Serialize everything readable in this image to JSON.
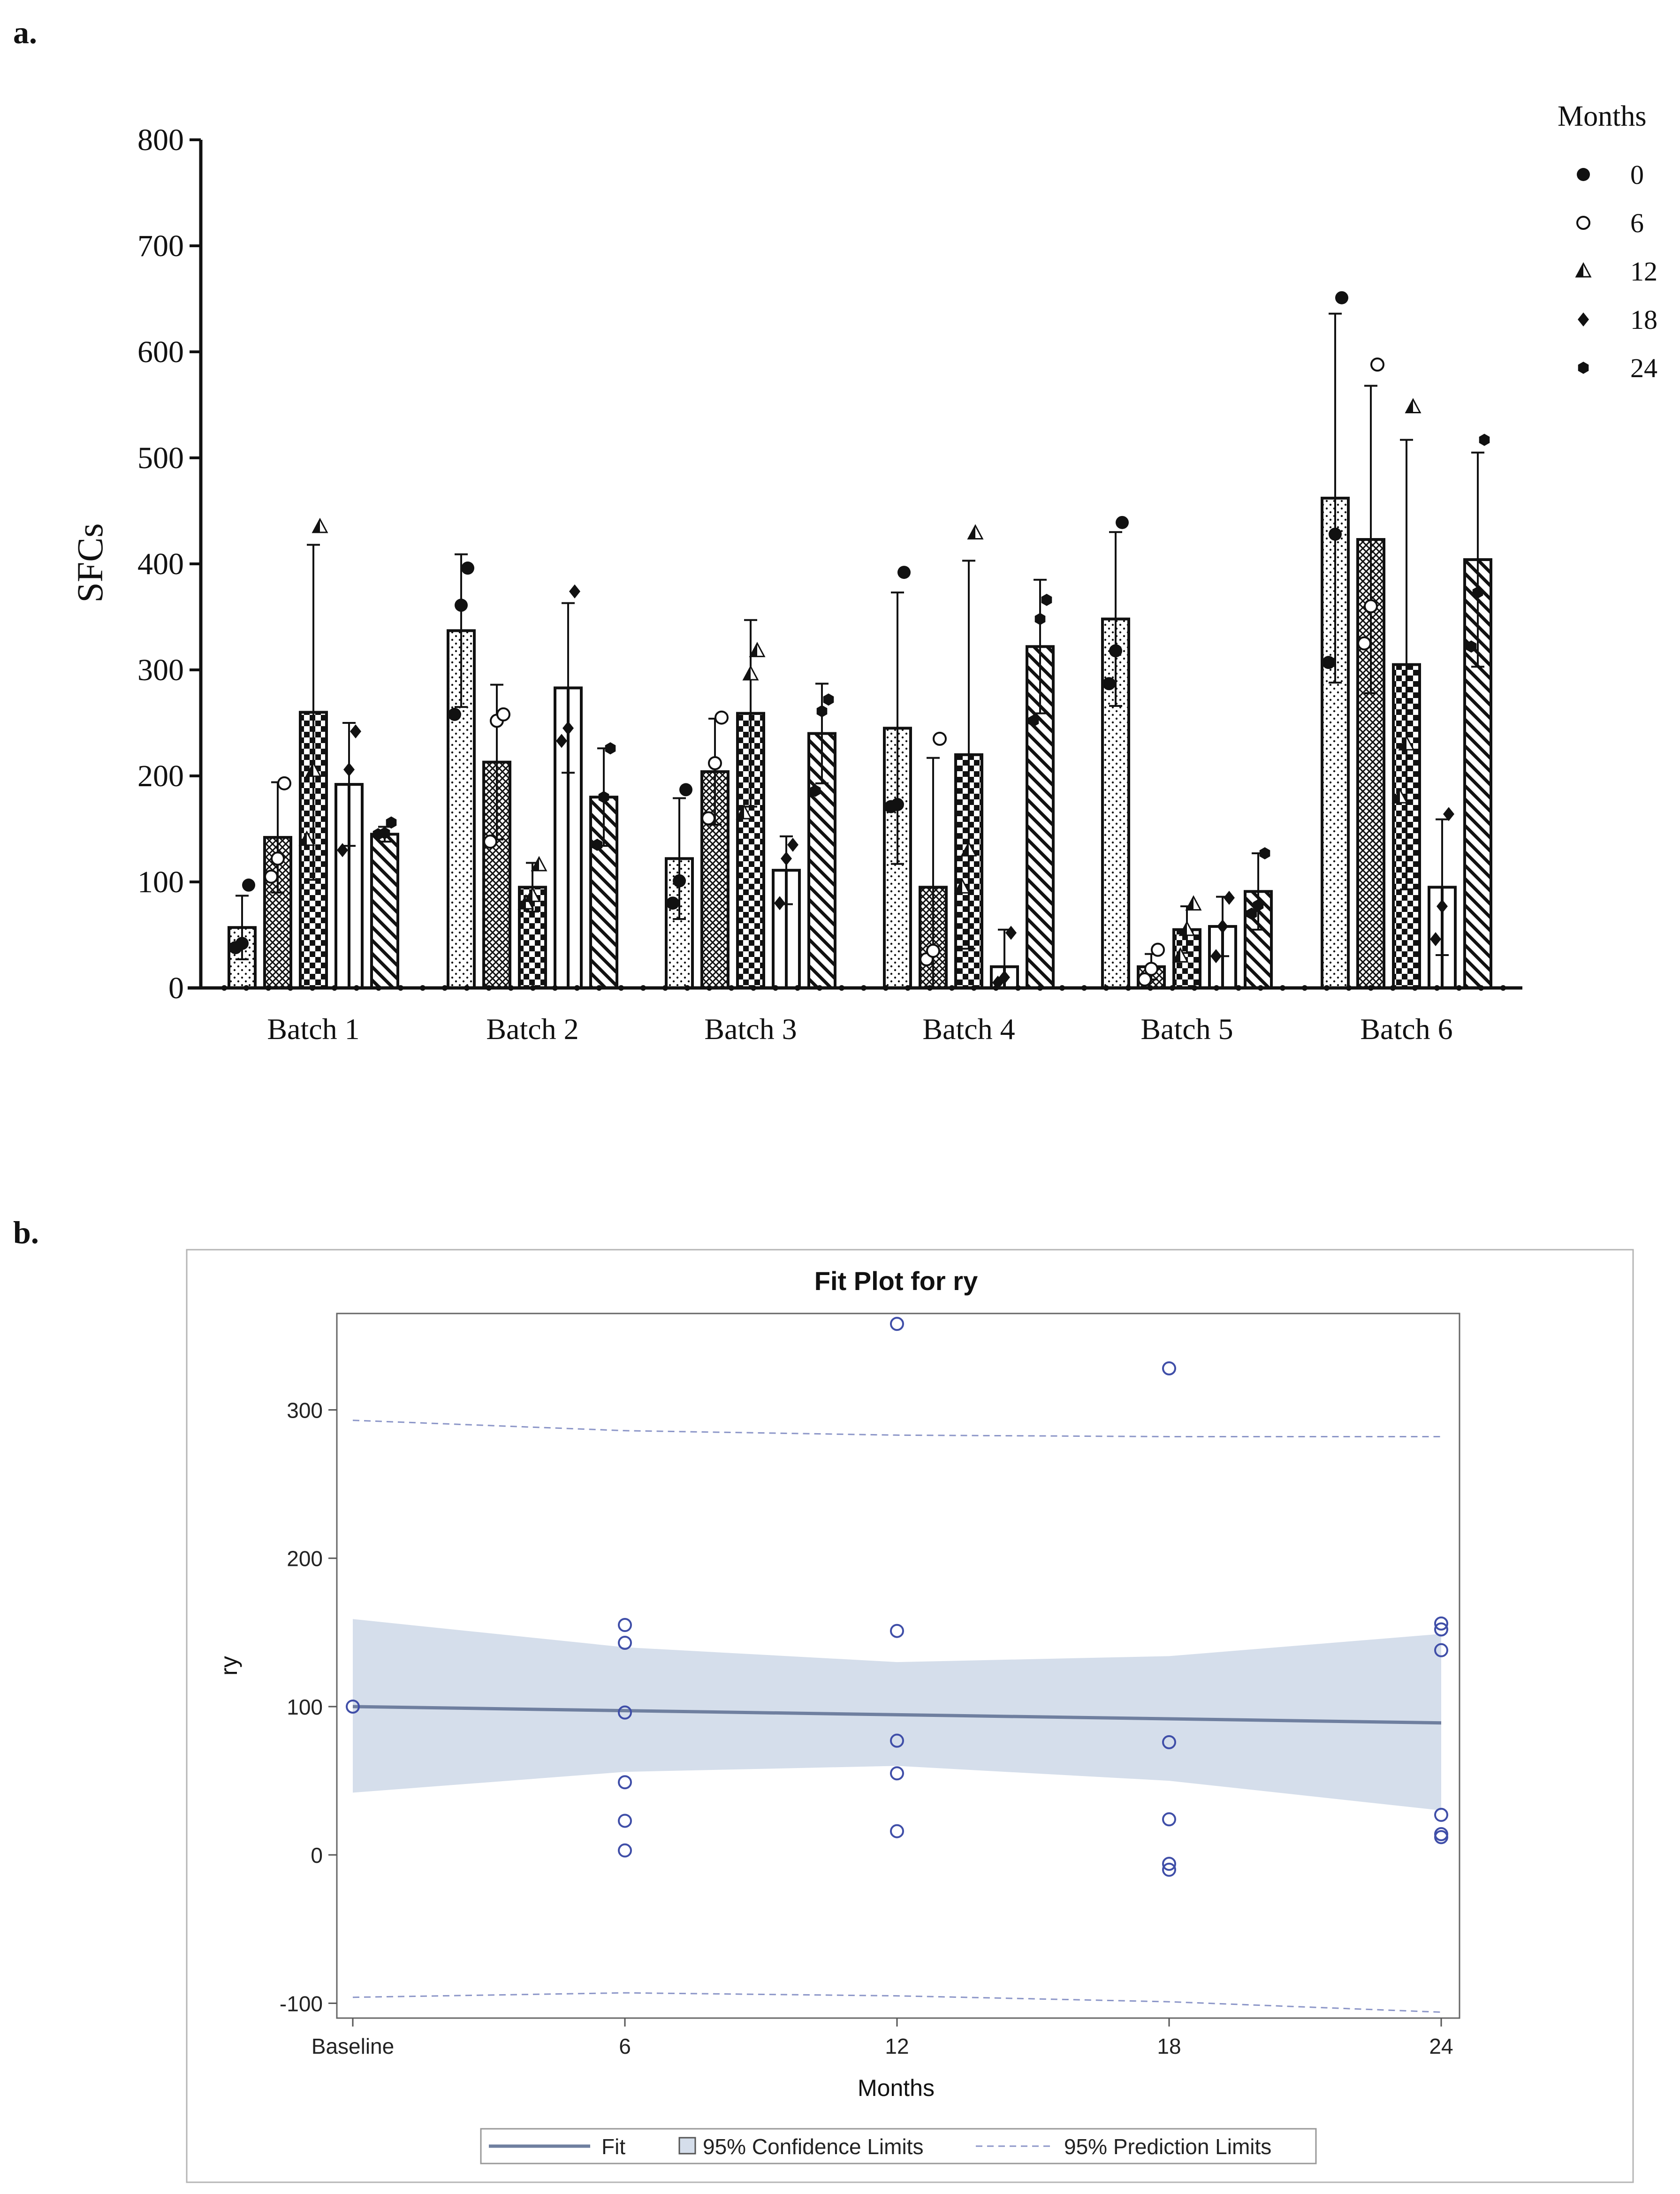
{
  "panel_labels": [
    "a.",
    "b."
  ],
  "chart_data": [
    {
      "type": "bar",
      "title": "",
      "xlabel": "",
      "ylabel": "SFCs",
      "ylim": [
        0,
        800
      ],
      "yticks": [
        "0",
        "100",
        "200",
        "300",
        "400",
        "500",
        "600",
        "700",
        "800"
      ],
      "categories": [
        "Batch 1",
        "Batch 2",
        "Batch 3",
        "Batch 4",
        "Batch 5",
        "Batch 6"
      ],
      "legend_title": "Months",
      "legend_position": "top-right",
      "series": [
        {
          "name": "0",
          "marker": "circle-filled",
          "pattern": "dots",
          "values": [
            57,
            337,
            122,
            245,
            348,
            462
          ],
          "errors": [
            30,
            72,
            57,
            128,
            82,
            174
          ],
          "points": [
            [
              38,
              42,
              97
            ],
            [
              258,
              361,
              396
            ],
            [
              80,
              101,
              187
            ],
            [
              171,
              173,
              392
            ],
            [
              287,
              318,
              439
            ],
            [
              307,
              428,
              651
            ]
          ]
        },
        {
          "name": "6",
          "marker": "circle-open",
          "pattern": "crosshatch",
          "values": [
            142,
            213,
            204,
            95,
            20,
            423
          ],
          "errors": [
            52,
            73,
            50,
            122,
            12,
            145
          ],
          "points": [
            [
              105,
              122,
              193
            ],
            [
              138,
              252,
              258
            ],
            [
              160,
              212,
              255
            ],
            [
              27,
              35,
              235
            ],
            [
              8,
              18,
              36
            ],
            [
              325,
              360,
              588
            ]
          ]
        },
        {
          "name": "12",
          "marker": "triangle-half",
          "pattern": "checker",
          "values": [
            260,
            95,
            259,
            220,
            55,
            305
          ],
          "errors": [
            158,
            23,
            88,
            183,
            22,
            212
          ],
          "points": [
            [
              140,
              205,
              435
            ],
            [
              80,
              87,
              116
            ],
            [
              165,
              296,
              318
            ],
            [
              95,
              130,
              429
            ],
            [
              30,
              55,
              79
            ],
            [
              180,
              230,
              548
            ]
          ]
        },
        {
          "name": "18",
          "marker": "diamond-filled",
          "pattern": "vertical",
          "values": [
            192,
            283,
            111,
            20,
            58,
            95
          ],
          "errors": [
            58,
            80,
            32,
            35,
            28,
            64
          ],
          "points": [
            [
              130,
              206,
              242
            ],
            [
              233,
              245,
              374
            ],
            [
              80,
              122,
              135
            ],
            [
              5,
              10,
              52
            ],
            [
              30,
              58,
              85
            ],
            [
              46,
              77,
              164
            ]
          ]
        },
        {
          "name": "24",
          "marker": "hexagon-filled",
          "pattern": "diagonal",
          "values": [
            145,
            180,
            240,
            322,
            91,
            404
          ],
          "errors": [
            7,
            46,
            47,
            63,
            36,
            101
          ],
          "points": [
            [
              145,
              146,
              156
            ],
            [
              135,
              180,
              226
            ],
            [
              186,
              261,
              272
            ],
            [
              252,
              348,
              366
            ],
            [
              70,
              78,
              127
            ],
            [
              322,
              373,
              517
            ]
          ]
        }
      ]
    },
    {
      "type": "scatter",
      "title": "Fit Plot for ry",
      "xlabel": "Months",
      "ylabel": "ry",
      "xlim": [
        0,
        24
      ],
      "ylim": [
        -110,
        365
      ],
      "xticks": [
        {
          "value": 0,
          "label": "Baseline"
        },
        {
          "value": 6,
          "label": "6"
        },
        {
          "value": 12,
          "label": "12"
        },
        {
          "value": 18,
          "label": "18"
        },
        {
          "value": 24,
          "label": "24"
        }
      ],
      "yticks": [
        "-100",
        "0",
        "100",
        "200",
        "300"
      ],
      "legend": [
        "Fit",
        "95% Confidence Limits",
        "95% Prediction Limits"
      ],
      "legend_position": "bottom",
      "points": [
        {
          "x": 0,
          "y": 100
        },
        {
          "x": 6,
          "y": 155
        },
        {
          "x": 6,
          "y": 143
        },
        {
          "x": 6,
          "y": 96
        },
        {
          "x": 6,
          "y": 49
        },
        {
          "x": 6,
          "y": 23
        },
        {
          "x": 6,
          "y": 3
        },
        {
          "x": 12,
          "y": 358
        },
        {
          "x": 12,
          "y": 151
        },
        {
          "x": 12,
          "y": 77
        },
        {
          "x": 12,
          "y": 55
        },
        {
          "x": 12,
          "y": 16
        },
        {
          "x": 18,
          "y": 328
        },
        {
          "x": 18,
          "y": 76
        },
        {
          "x": 18,
          "y": 24
        },
        {
          "x": 18,
          "y": -6
        },
        {
          "x": 18,
          "y": -10
        },
        {
          "x": 24,
          "y": 156
        },
        {
          "x": 24,
          "y": 152
        },
        {
          "x": 24,
          "y": 138
        },
        {
          "x": 24,
          "y": 27
        },
        {
          "x": 24,
          "y": 14
        },
        {
          "x": 24,
          "y": 12
        }
      ],
      "fit_line": [
        [
          0,
          100
        ],
        [
          24,
          89
        ]
      ],
      "confidence_band": {
        "x": [
          0,
          6,
          12,
          18,
          24
        ],
        "upper": [
          159,
          140,
          130,
          134,
          149
        ],
        "lower": [
          42,
          56,
          60,
          50,
          30
        ]
      },
      "prediction_band": {
        "x": [
          0,
          6,
          12,
          18,
          24
        ],
        "upper": [
          293,
          286,
          283,
          282,
          282
        ],
        "lower": [
          -96,
          -93,
          -95,
          -99,
          -106
        ]
      }
    }
  ]
}
